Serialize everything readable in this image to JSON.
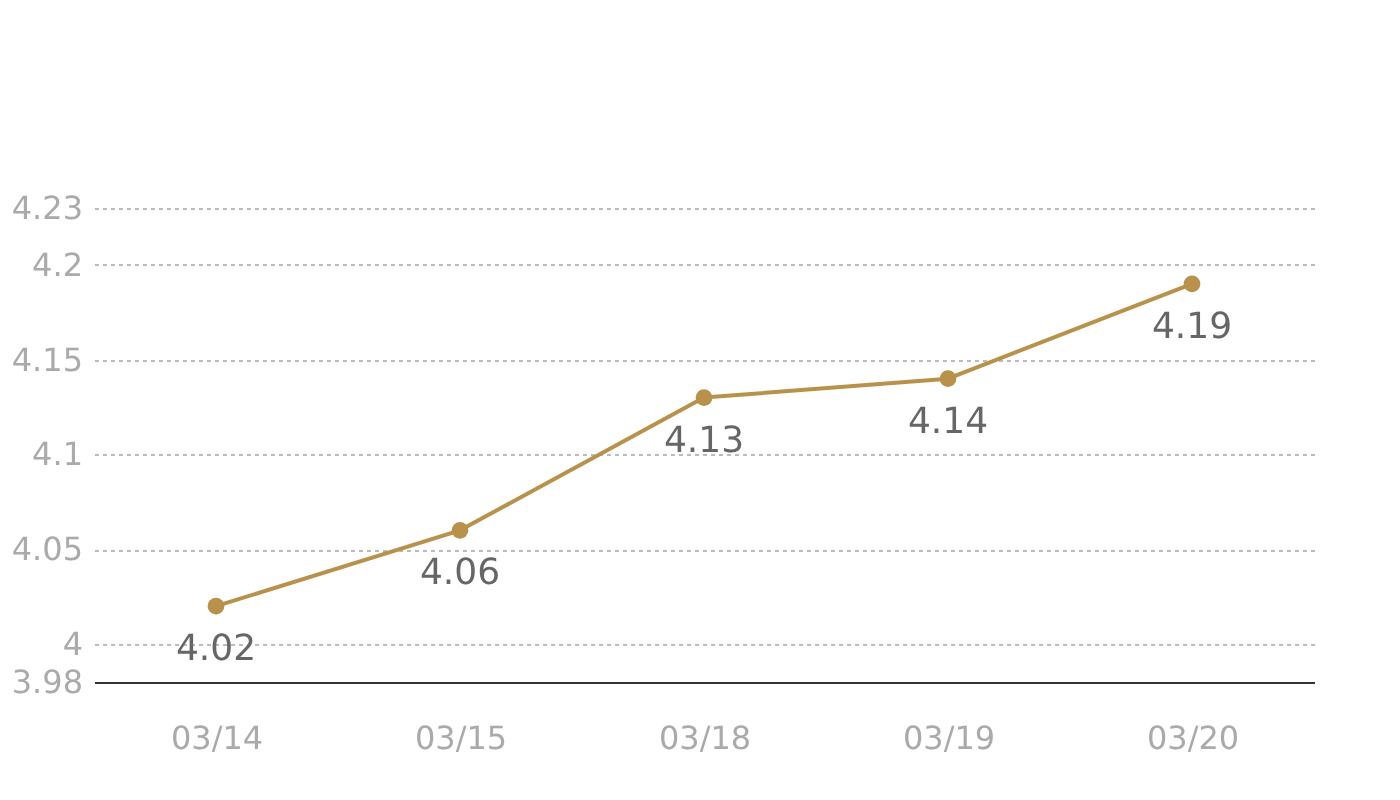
{
  "chart_data": {
    "type": "line",
    "categories": [
      "03/14",
      "03/15",
      "03/18",
      "03/19",
      "03/20"
    ],
    "series": [
      {
        "color": "#b8914a",
        "values": [
          4.02,
          4.06,
          4.13,
          4.14,
          4.19
        ]
      }
    ],
    "ylim": [
      3.98,
      4.23
    ],
    "yticks": [
      3.98,
      4,
      4.05,
      4.1,
      4.15,
      4.2,
      4.23
    ],
    "grid": "y",
    "marker": "circle",
    "line_style": "solid",
    "data_labels": true
  }
}
